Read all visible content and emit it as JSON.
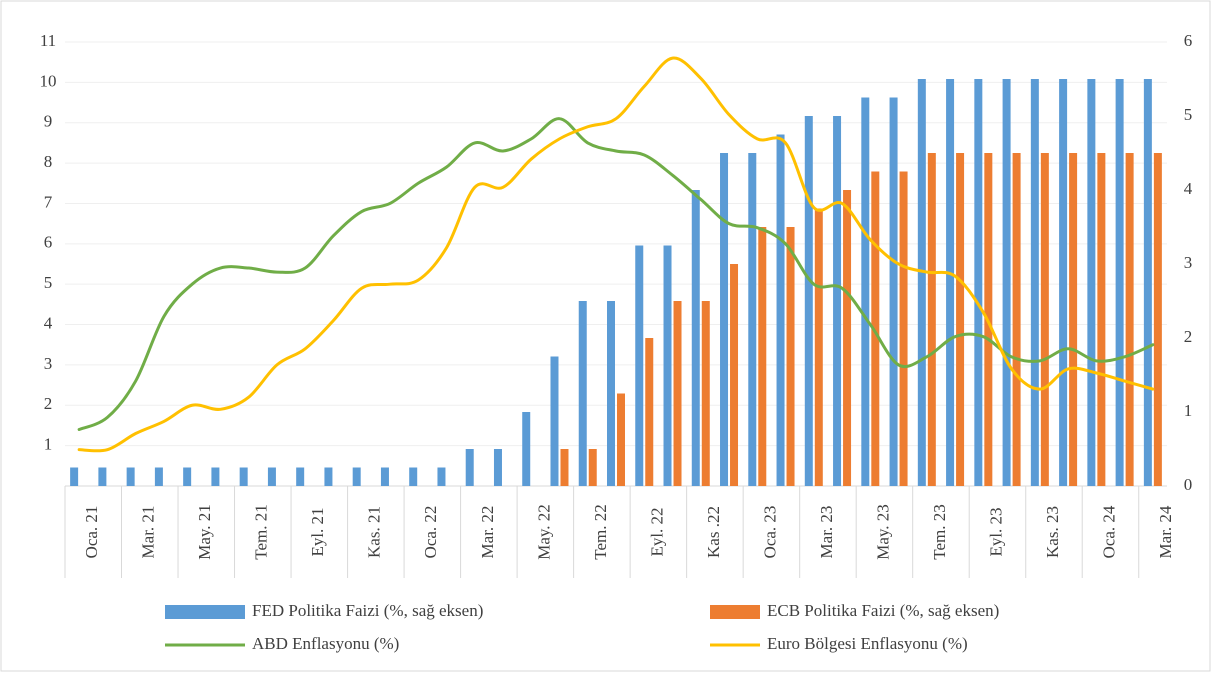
{
  "chart_data": {
    "type": "bar_line",
    "categories": [
      "Oca. 21",
      null,
      "Mar. 21",
      null,
      "May. 21",
      null,
      "Tem. 21",
      null,
      "Eyl. 21",
      null,
      "Kas. 21",
      null,
      "Oca. 22",
      null,
      "Mar. 22",
      null,
      "May. 22",
      null,
      "Tem. 22",
      null,
      "Eyl. 22",
      null,
      "Kas .22",
      null,
      "Oca. 23",
      null,
      "Mar. 23",
      null,
      "May. 23",
      null,
      "Tem. 23",
      null,
      "Eyl. 23",
      null,
      "Kas. 23",
      null,
      "Oca. 24",
      null,
      "Mar. 24"
    ],
    "ylim": [
      0,
      11
    ],
    "yticks": [
      1,
      2,
      3,
      4,
      5,
      6,
      7,
      8,
      9,
      10,
      11
    ],
    "y2lim": [
      0,
      6
    ],
    "y2ticks": [
      0,
      1,
      2,
      3,
      4,
      5,
      6
    ],
    "grid": true,
    "legend": "bottom",
    "series": [
      {
        "name": "FED Politika Faizi (%, sağ eksen)",
        "kind": "bar",
        "axis": "y2",
        "color": "#5b9bd5",
        "values": [
          0.25,
          0.25,
          0.25,
          0.25,
          0.25,
          0.25,
          0.25,
          0.25,
          0.25,
          0.25,
          0.25,
          0.25,
          0.25,
          0.25,
          0.5,
          0.5,
          1.0,
          1.75,
          2.5,
          2.5,
          3.25,
          3.25,
          4.0,
          4.5,
          4.5,
          4.75,
          5.0,
          5.0,
          5.25,
          5.25,
          5.5,
          5.5,
          5.5,
          5.5,
          5.5,
          5.5,
          5.5,
          5.5,
          5.5
        ]
      },
      {
        "name": "ECB Politika Faizi (%, sağ eksen)",
        "kind": "bar",
        "axis": "y2",
        "color": "#ed7d31",
        "values": [
          0,
          0,
          0,
          0,
          0,
          0,
          0,
          0,
          0,
          0,
          0,
          0,
          0,
          0,
          0,
          0,
          0,
          0.5,
          0.5,
          1.25,
          2.0,
          2.5,
          2.5,
          3.0,
          3.5,
          3.5,
          3.75,
          4.0,
          4.25,
          4.25,
          4.5,
          4.5,
          4.5,
          4.5,
          4.5,
          4.5,
          4.5,
          4.5,
          4.5
        ]
      },
      {
        "name": "ABD Enflasyonu (%)",
        "kind": "line",
        "axis": "y",
        "color": "#70ad47",
        "values": [
          1.4,
          1.7,
          2.6,
          4.2,
          5.0,
          5.4,
          5.4,
          5.3,
          5.4,
          6.2,
          6.8,
          7.0,
          7.5,
          7.9,
          8.5,
          8.3,
          8.6,
          9.1,
          8.5,
          8.3,
          8.2,
          7.7,
          7.1,
          6.5,
          6.4,
          6.0,
          5.0,
          4.9,
          4.0,
          3.0,
          3.2,
          3.7,
          3.7,
          3.2,
          3.1,
          3.4,
          3.1,
          3.2,
          3.5
        ]
      },
      {
        "name": "Euro Bölgesi Enflasyonu (%)",
        "kind": "line",
        "axis": "y",
        "color": "#ffc000",
        "values": [
          0.9,
          0.9,
          1.3,
          1.6,
          2.0,
          1.9,
          2.2,
          3.0,
          3.4,
          4.1,
          4.9,
          5.0,
          5.1,
          5.9,
          7.4,
          7.4,
          8.1,
          8.6,
          8.9,
          9.1,
          9.9,
          10.6,
          10.1,
          9.2,
          8.6,
          8.5,
          6.9,
          7.0,
          6.1,
          5.5,
          5.3,
          5.2,
          4.3,
          2.9,
          2.4,
          2.9,
          2.8,
          2.6,
          2.4
        ]
      }
    ]
  }
}
